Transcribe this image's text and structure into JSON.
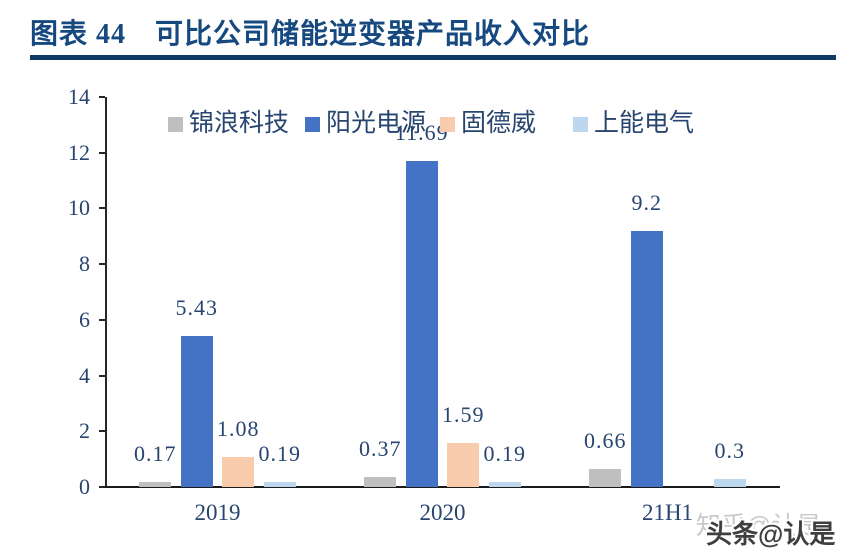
{
  "header": {
    "title": "图表 44　可比公司储能逆变器产品收入对比"
  },
  "chart_data": {
    "type": "bar",
    "categories": [
      "2019",
      "2020",
      "21H1"
    ],
    "series": [
      {
        "name": "锦浪科技",
        "color": "#BFBFBF",
        "values": [
          0.17,
          0.37,
          0.66
        ]
      },
      {
        "name": "阳光电源",
        "color": "#4472C4",
        "values": [
          5.43,
          11.69,
          9.2
        ]
      },
      {
        "name": "固德威",
        "color": "#F8CBAD",
        "values": [
          1.08,
          1.59,
          null
        ]
      },
      {
        "name": "上能电气",
        "color": "#BDD7EE",
        "values": [
          0.19,
          0.19,
          0.3
        ]
      }
    ],
    "ylim": [
      0,
      14
    ],
    "yticks": [
      0,
      2,
      4,
      6,
      8,
      10,
      12,
      14
    ],
    "grid": false,
    "legend_position": "top",
    "text_color": "#27456F",
    "axis_color": "#262626"
  },
  "watermark": {
    "back_text": "知乎@认是",
    "front_text": "头条@认是"
  }
}
